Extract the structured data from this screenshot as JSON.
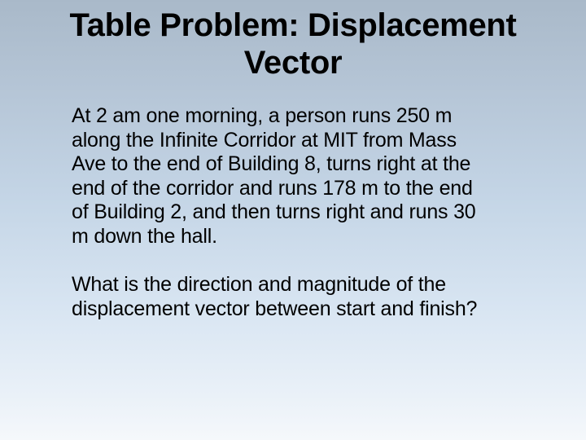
{
  "slide": {
    "title": "Table Problem: Displacement Vector",
    "paragraph1": "At 2 am one morning, a person runs 250 m along the Infinite Corridor at MIT from Mass Ave to the end of Building 8, turns right at the end of the corridor and runs 178 m to the end of Building 2, and then turns right and runs 30 m down the hall.",
    "paragraph2": "What is the direction and magnitude of the displacement vector between start and finish?"
  },
  "style": {
    "background_gradient_top": "#a9b9c9",
    "background_gradient_bottom": "#f5f8fb",
    "title_fontsize": 40,
    "title_weight": "bold",
    "title_color": "#000000",
    "body_fontsize": 25,
    "body_color": "#000000",
    "font_family": "Arial"
  }
}
